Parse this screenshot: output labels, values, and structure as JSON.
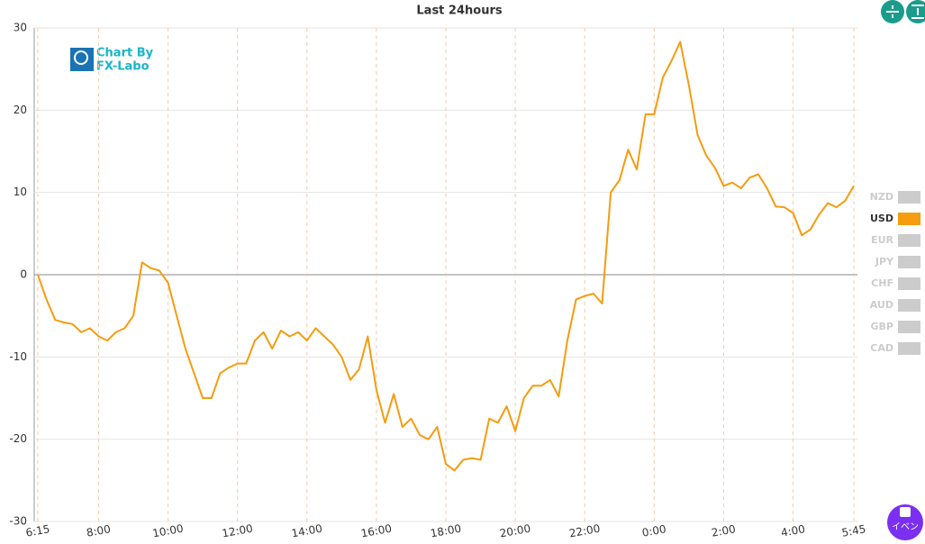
{
  "chart_data": {
    "type": "line",
    "title": "Last 24hours",
    "categories": [
      "6:15",
      null,
      null,
      null,
      null,
      null,
      null,
      "8:00",
      null,
      null,
      null,
      null,
      null,
      null,
      null,
      "10:00",
      null,
      null,
      null,
      null,
      null,
      null,
      null,
      "12:00",
      null,
      null,
      null,
      null,
      null,
      null,
      null,
      "14:00",
      null,
      null,
      null,
      null,
      null,
      null,
      null,
      "16:00",
      null,
      null,
      null,
      null,
      null,
      null,
      null,
      "18:00",
      null,
      null,
      null,
      null,
      null,
      null,
      null,
      "20:00",
      null,
      null,
      null,
      null,
      null,
      null,
      null,
      "22:00",
      null,
      null,
      null,
      null,
      null,
      null,
      null,
      "0:00",
      null,
      null,
      null,
      null,
      null,
      null,
      null,
      "2:00",
      null,
      null,
      null,
      null,
      null,
      null,
      null,
      "4:00",
      null,
      null,
      null,
      null,
      null,
      null,
      "5:45"
    ],
    "series": [
      {
        "name": "USD",
        "color": "#f59c0f",
        "values": [
          0,
          -3,
          -5.5,
          -5.8,
          -6,
          -7,
          -6.5,
          -7.5,
          -8,
          -7,
          -6.5,
          -5,
          1.5,
          0.8,
          0.5,
          -1,
          -5,
          -9,
          -12,
          -15,
          -15,
          -12,
          -11.3,
          -10.8,
          -10.8,
          -8,
          -7,
          -9,
          -6.8,
          -7.5,
          -7,
          -8,
          -6.5,
          -7.5,
          -8.5,
          -10,
          -12.8,
          -11.5,
          -7.5,
          -14,
          -18,
          -14.5,
          -18.5,
          -17.5,
          -19.5,
          -20,
          -18.5,
          -23,
          -23.8,
          -22.5,
          -22.3,
          -22.5,
          -17.5,
          -18,
          -16,
          -19,
          -15,
          -13.5,
          -13.5,
          -12.8,
          -14.8,
          -8,
          -3,
          -2.6,
          -2.3,
          -3.5,
          10,
          11.5,
          15.2,
          12.8,
          19.5,
          19.5,
          24,
          26,
          28.3,
          23,
          17,
          14.5,
          13,
          10.8,
          11.2,
          10.5,
          11.8,
          12.2,
          10.5,
          8.3,
          8.2,
          7.5,
          4.8,
          5.5,
          7.3,
          8.7,
          8.2,
          9,
          10.8
        ]
      }
    ],
    "ylim": [
      -30,
      30
    ],
    "yticks": [
      -30,
      -20,
      -10,
      0,
      10,
      20,
      30
    ],
    "grid": true,
    "legend": {
      "position": "right",
      "names": [
        "NZD",
        "USD",
        "EUR",
        "JPY",
        "CHF",
        "AUD",
        "GBP",
        "CAD"
      ],
      "inactive_color": "#cccccc"
    }
  },
  "watermark": [
    "Chart By",
    "FX-Labo"
  ],
  "event_button": "イベン"
}
